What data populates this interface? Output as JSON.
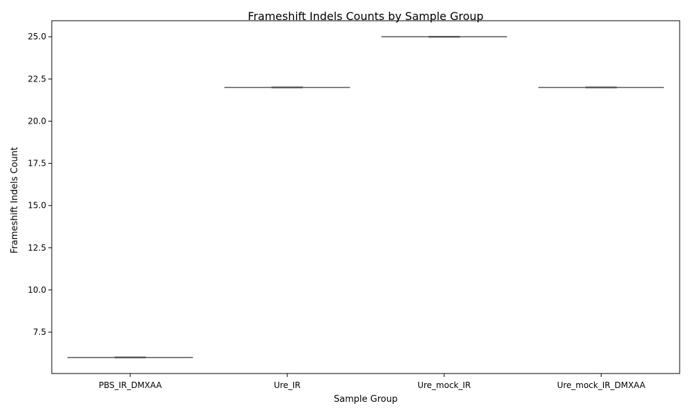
{
  "chart_data": {
    "type": "violin",
    "title": "Frameshift Indels Counts by Sample Group",
    "xlabel": "Sample Group",
    "ylabel": "Frameshift Indels Count",
    "categories": [
      "PBS_IR_DMXAA",
      "Ure_IR",
      "Ure_mock_IR",
      "Ure_mock_IR_DMXAA"
    ],
    "values": [
      6,
      22,
      25,
      22
    ],
    "ylim": [
      5.05,
      25.95
    ],
    "yticks": [
      7.5,
      10.0,
      12.5,
      15.0,
      17.5,
      20.0,
      22.5,
      25.0
    ],
    "ytick_labels": [
      "7.5",
      "10.0",
      "12.5",
      "15.0",
      "17.5",
      "20.0",
      "22.5",
      "25.0"
    ],
    "grid": false,
    "legend": "none",
    "line_color": "#555555"
  }
}
